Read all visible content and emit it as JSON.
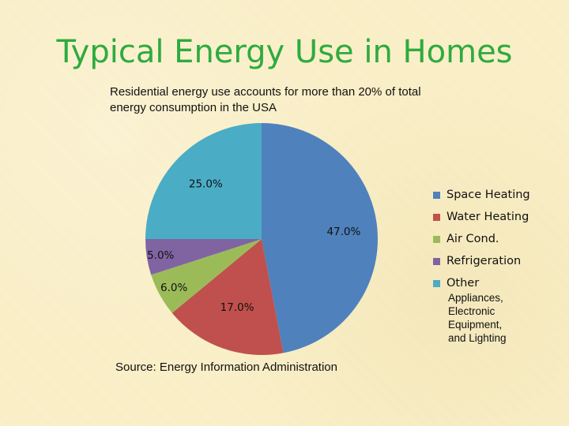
{
  "slide": {
    "title": "Typical Energy Use in Homes",
    "subtitle": "Residential energy use accounts for more than 20% of total energy consumption in the USA",
    "source": "Source: Energy Information Administration",
    "other_note": [
      "Appliances,",
      "Electronic",
      "Equipment,",
      "and Lighting"
    ]
  },
  "chart_data": {
    "type": "pie",
    "title": "",
    "categories": [
      "Space Heating",
      "Water Heating",
      "Air Cond.",
      "Refrigeration",
      "Other"
    ],
    "values": [
      47.0,
      17.0,
      6.0,
      5.0,
      25.0
    ],
    "labels": [
      "47.0%",
      "17.0%",
      "6.0%",
      "5.0%",
      "25.0%"
    ],
    "colors": [
      "#4f81bd",
      "#c0504d",
      "#9bbb59",
      "#8064a2",
      "#4bacc6"
    ],
    "start": "12 o'clock",
    "direction": "clockwise",
    "legend_position": "right"
  }
}
